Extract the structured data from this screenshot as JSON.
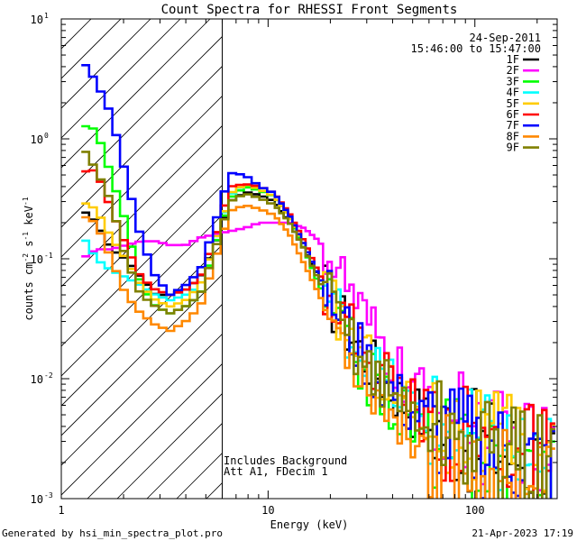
{
  "chart_data": {
    "type": "line",
    "title": "Count Spectra for RHESSI Front Segments",
    "xlabel": "Energy (keV)",
    "ylabel_parts": [
      "counts cm",
      "-2",
      " s",
      "-1",
      " keV",
      "-1"
    ],
    "xscale": "log",
    "yscale": "log",
    "xlim": [
      1,
      250
    ],
    "ylim": [
      0.001,
      10
    ],
    "x_ticks": [
      {
        "v": 10,
        "label": "10"
      },
      {
        "v": 100,
        "label": "100"
      }
    ],
    "x_tick_label_1": "1",
    "y_ticks": [
      {
        "v": 10,
        "base": "10",
        "exp": "1"
      },
      {
        "v": 1,
        "base": "10",
        "exp": "0"
      },
      {
        "v": 0.1,
        "base": "10",
        "exp": "-1"
      },
      {
        "v": 0.01,
        "base": "10",
        "exp": "-2"
      },
      {
        "v": 0.001,
        "base": "10",
        "exp": "-3"
      }
    ],
    "date_label": "24-Sep-2011",
    "time_range_label": "15:46:00 to 15:47:00",
    "hatched_region_max_kev": 6,
    "annotations": [
      "Includes Background",
      "Att A1, FDecim 1"
    ],
    "series": [
      {
        "name": "1F",
        "color": "#000000",
        "values": [
          0.26,
          0.2,
          0.12,
          0.1,
          0.07,
          0.05,
          0.05,
          0.055,
          0.07,
          0.13,
          0.3,
          0.36,
          0.34,
          0.3,
          0.2,
          0.12,
          0.07,
          0.04,
          0.025,
          0.016,
          0.011,
          0.008,
          0.006,
          0.0048,
          0.004,
          0.0035,
          0.003,
          0.0028,
          0.0026,
          0.0024,
          0.0022,
          0.002,
          0.0018
        ]
      },
      {
        "name": "2F",
        "color": "#ff00ff",
        "values": [
          0.1,
          0.12,
          0.12,
          0.13,
          0.14,
          0.14,
          0.13,
          0.13,
          0.15,
          0.16,
          0.17,
          0.18,
          0.2,
          0.2,
          0.2,
          0.18,
          0.14,
          0.09,
          0.055,
          0.03,
          0.02,
          0.013,
          0.009,
          0.007,
          0.0055,
          0.0045,
          0.004,
          0.0035,
          0.003,
          0.0027,
          0.0024,
          0.0022,
          0.002
        ]
      },
      {
        "name": "3F",
        "color": "#00ff00",
        "values": [
          1.3,
          1.2,
          0.5,
          0.2,
          0.06,
          0.04,
          0.035,
          0.04,
          0.05,
          0.13,
          0.32,
          0.4,
          0.37,
          0.33,
          0.22,
          0.12,
          0.06,
          0.035,
          0.02,
          0.012,
          0.008,
          0.006,
          0.0045,
          0.0038,
          0.0032,
          0.0028,
          0.0025,
          0.0023,
          0.0021,
          0.0019,
          0.0017,
          0.0016,
          0.0015
        ]
      },
      {
        "name": "4F",
        "color": "#00ffff",
        "values": [
          0.16,
          0.1,
          0.08,
          0.07,
          0.06,
          0.05,
          0.045,
          0.05,
          0.06,
          0.14,
          0.34,
          0.42,
          0.38,
          0.33,
          0.22,
          0.13,
          0.07,
          0.04,
          0.025,
          0.016,
          0.011,
          0.008,
          0.006,
          0.0048,
          0.004,
          0.0035,
          0.003,
          0.0028,
          0.0026,
          0.0024,
          0.0022,
          0.002,
          0.0018
        ]
      },
      {
        "name": "5F",
        "color": "#ffcc00",
        "values": [
          0.3,
          0.26,
          0.15,
          0.1,
          0.06,
          0.045,
          0.04,
          0.045,
          0.06,
          0.14,
          0.35,
          0.42,
          0.38,
          0.33,
          0.22,
          0.13,
          0.07,
          0.04,
          0.025,
          0.016,
          0.011,
          0.008,
          0.006,
          0.005,
          0.0042,
          0.0037,
          0.0033,
          0.003,
          0.0028,
          0.0026,
          0.0024,
          0.0022,
          0.002
        ]
      },
      {
        "name": "6F",
        "color": "#ff0000",
        "values": [
          0.53,
          0.55,
          0.26,
          0.13,
          0.07,
          0.055,
          0.05,
          0.055,
          0.07,
          0.15,
          0.4,
          0.42,
          0.4,
          0.35,
          0.24,
          0.14,
          0.075,
          0.045,
          0.028,
          0.018,
          0.012,
          0.009,
          0.0065,
          0.005,
          0.0042,
          0.0036,
          0.0032,
          0.003,
          0.0028,
          0.0026,
          0.0024,
          0.0022,
          0.002
        ]
      },
      {
        "name": "7F",
        "color": "#0000ff",
        "values": [
          4.6,
          3.0,
          1.6,
          0.5,
          0.15,
          0.07,
          0.05,
          0.06,
          0.08,
          0.2,
          0.52,
          0.5,
          0.4,
          0.35,
          0.23,
          0.13,
          0.07,
          0.04,
          0.024,
          0.015,
          0.01,
          0.0075,
          0.0055,
          0.0045,
          0.0038,
          0.0033,
          0.003,
          0.0027,
          0.0025,
          0.0023,
          0.0021,
          0.0019,
          0.0017
        ]
      },
      {
        "name": "8F",
        "color": "#ff8800",
        "values": [
          0.23,
          0.2,
          0.1,
          0.05,
          0.035,
          0.028,
          0.025,
          0.03,
          0.04,
          0.1,
          0.25,
          0.28,
          0.26,
          0.23,
          0.16,
          0.09,
          0.05,
          0.028,
          0.017,
          0.011,
          0.007,
          0.005,
          0.0038,
          0.003,
          0.0025,
          0.0022,
          0.002,
          0.0018,
          0.0016,
          0.0015,
          0.0014,
          0.0013,
          0.0012
        ]
      },
      {
        "name": "9F",
        "color": "#808000",
        "values": [
          0.88,
          0.55,
          0.3,
          0.1,
          0.05,
          0.04,
          0.035,
          0.04,
          0.05,
          0.12,
          0.3,
          0.35,
          0.32,
          0.28,
          0.2,
          0.12,
          0.065,
          0.038,
          0.023,
          0.015,
          0.01,
          0.0075,
          0.0055,
          0.0045,
          0.0038,
          0.0033,
          0.003,
          0.0027,
          0.0025,
          0.0023,
          0.0021,
          0.0019,
          0.0017
        ]
      }
    ]
  },
  "footer": {
    "generated_by": "Generated by hsi_min_spectra_plot.pro",
    "timestamp": "21-Apr-2023 17:19"
  }
}
